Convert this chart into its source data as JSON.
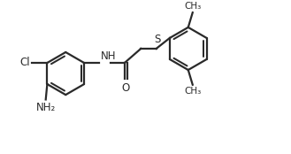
{
  "bg_color": "#ffffff",
  "line_color": "#2a2a2a",
  "line_width": 1.6,
  "font_size": 8.5,
  "figsize": [
    3.29,
    1.74
  ],
  "dpi": 100,
  "xlim": [
    0,
    9.5
  ],
  "ylim": [
    0,
    5.0
  ]
}
